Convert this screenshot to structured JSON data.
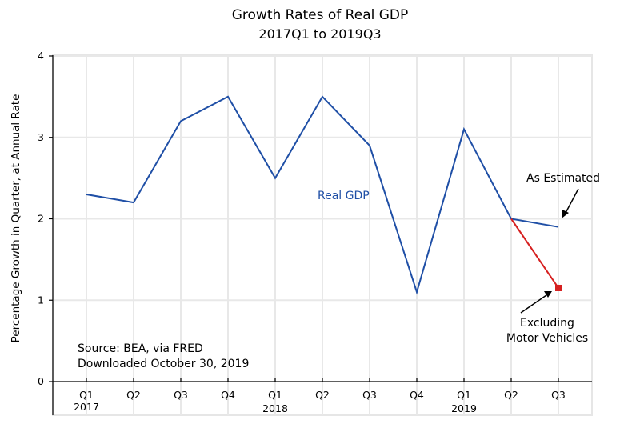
{
  "chart_data": {
    "type": "line",
    "title": "Growth Rates of Real GDP",
    "subtitle": "2017Q1 to 2019Q3",
    "xlabel": "",
    "ylabel": "Percentage Growth in Quarter, at Annual Rate",
    "ylim": [
      0,
      4
    ],
    "yticks": [
      0,
      1,
      2,
      3,
      4
    ],
    "grid": true,
    "categories": [
      "2017Q1",
      "2017Q2",
      "2017Q3",
      "2017Q4",
      "2018Q1",
      "2018Q2",
      "2018Q3",
      "2018Q4",
      "2019Q1",
      "2019Q2",
      "2019Q3"
    ],
    "x_tick_labels": [
      "Q1",
      "Q2",
      "Q3",
      "Q4",
      "Q1",
      "Q2",
      "Q3",
      "Q4",
      "Q1",
      "Q2",
      "Q3"
    ],
    "year_labels": [
      {
        "index": 0,
        "label": "2017"
      },
      {
        "index": 4,
        "label": "2018"
      },
      {
        "index": 8,
        "label": "2019"
      }
    ],
    "series": [
      {
        "name": "Real GDP",
        "color": "#1f4fa6",
        "values": [
          2.3,
          2.2,
          3.2,
          3.5,
          2.5,
          3.5,
          2.9,
          1.1,
          3.1,
          2.0,
          1.9
        ]
      },
      {
        "name": "Excluding Motor Vehicles",
        "color": "#d62020",
        "start_index": 9,
        "values": [
          2.0,
          1.15
        ],
        "marker": "square"
      }
    ],
    "annotations": [
      {
        "text": "Real GDP",
        "role": "series-label"
      },
      {
        "text": "As Estimated",
        "role": "arrow-label",
        "points_to": "2019Q3 Real GDP"
      },
      {
        "text": [
          "Excluding",
          "Motor Vehicles"
        ],
        "role": "arrow-label",
        "points_to": "2019Q3 Excluding Motor Vehicles"
      },
      {
        "text": [
          "Source:  BEA, via FRED",
          "Downloaded October 30, 2019"
        ],
        "role": "source-note"
      }
    ]
  }
}
